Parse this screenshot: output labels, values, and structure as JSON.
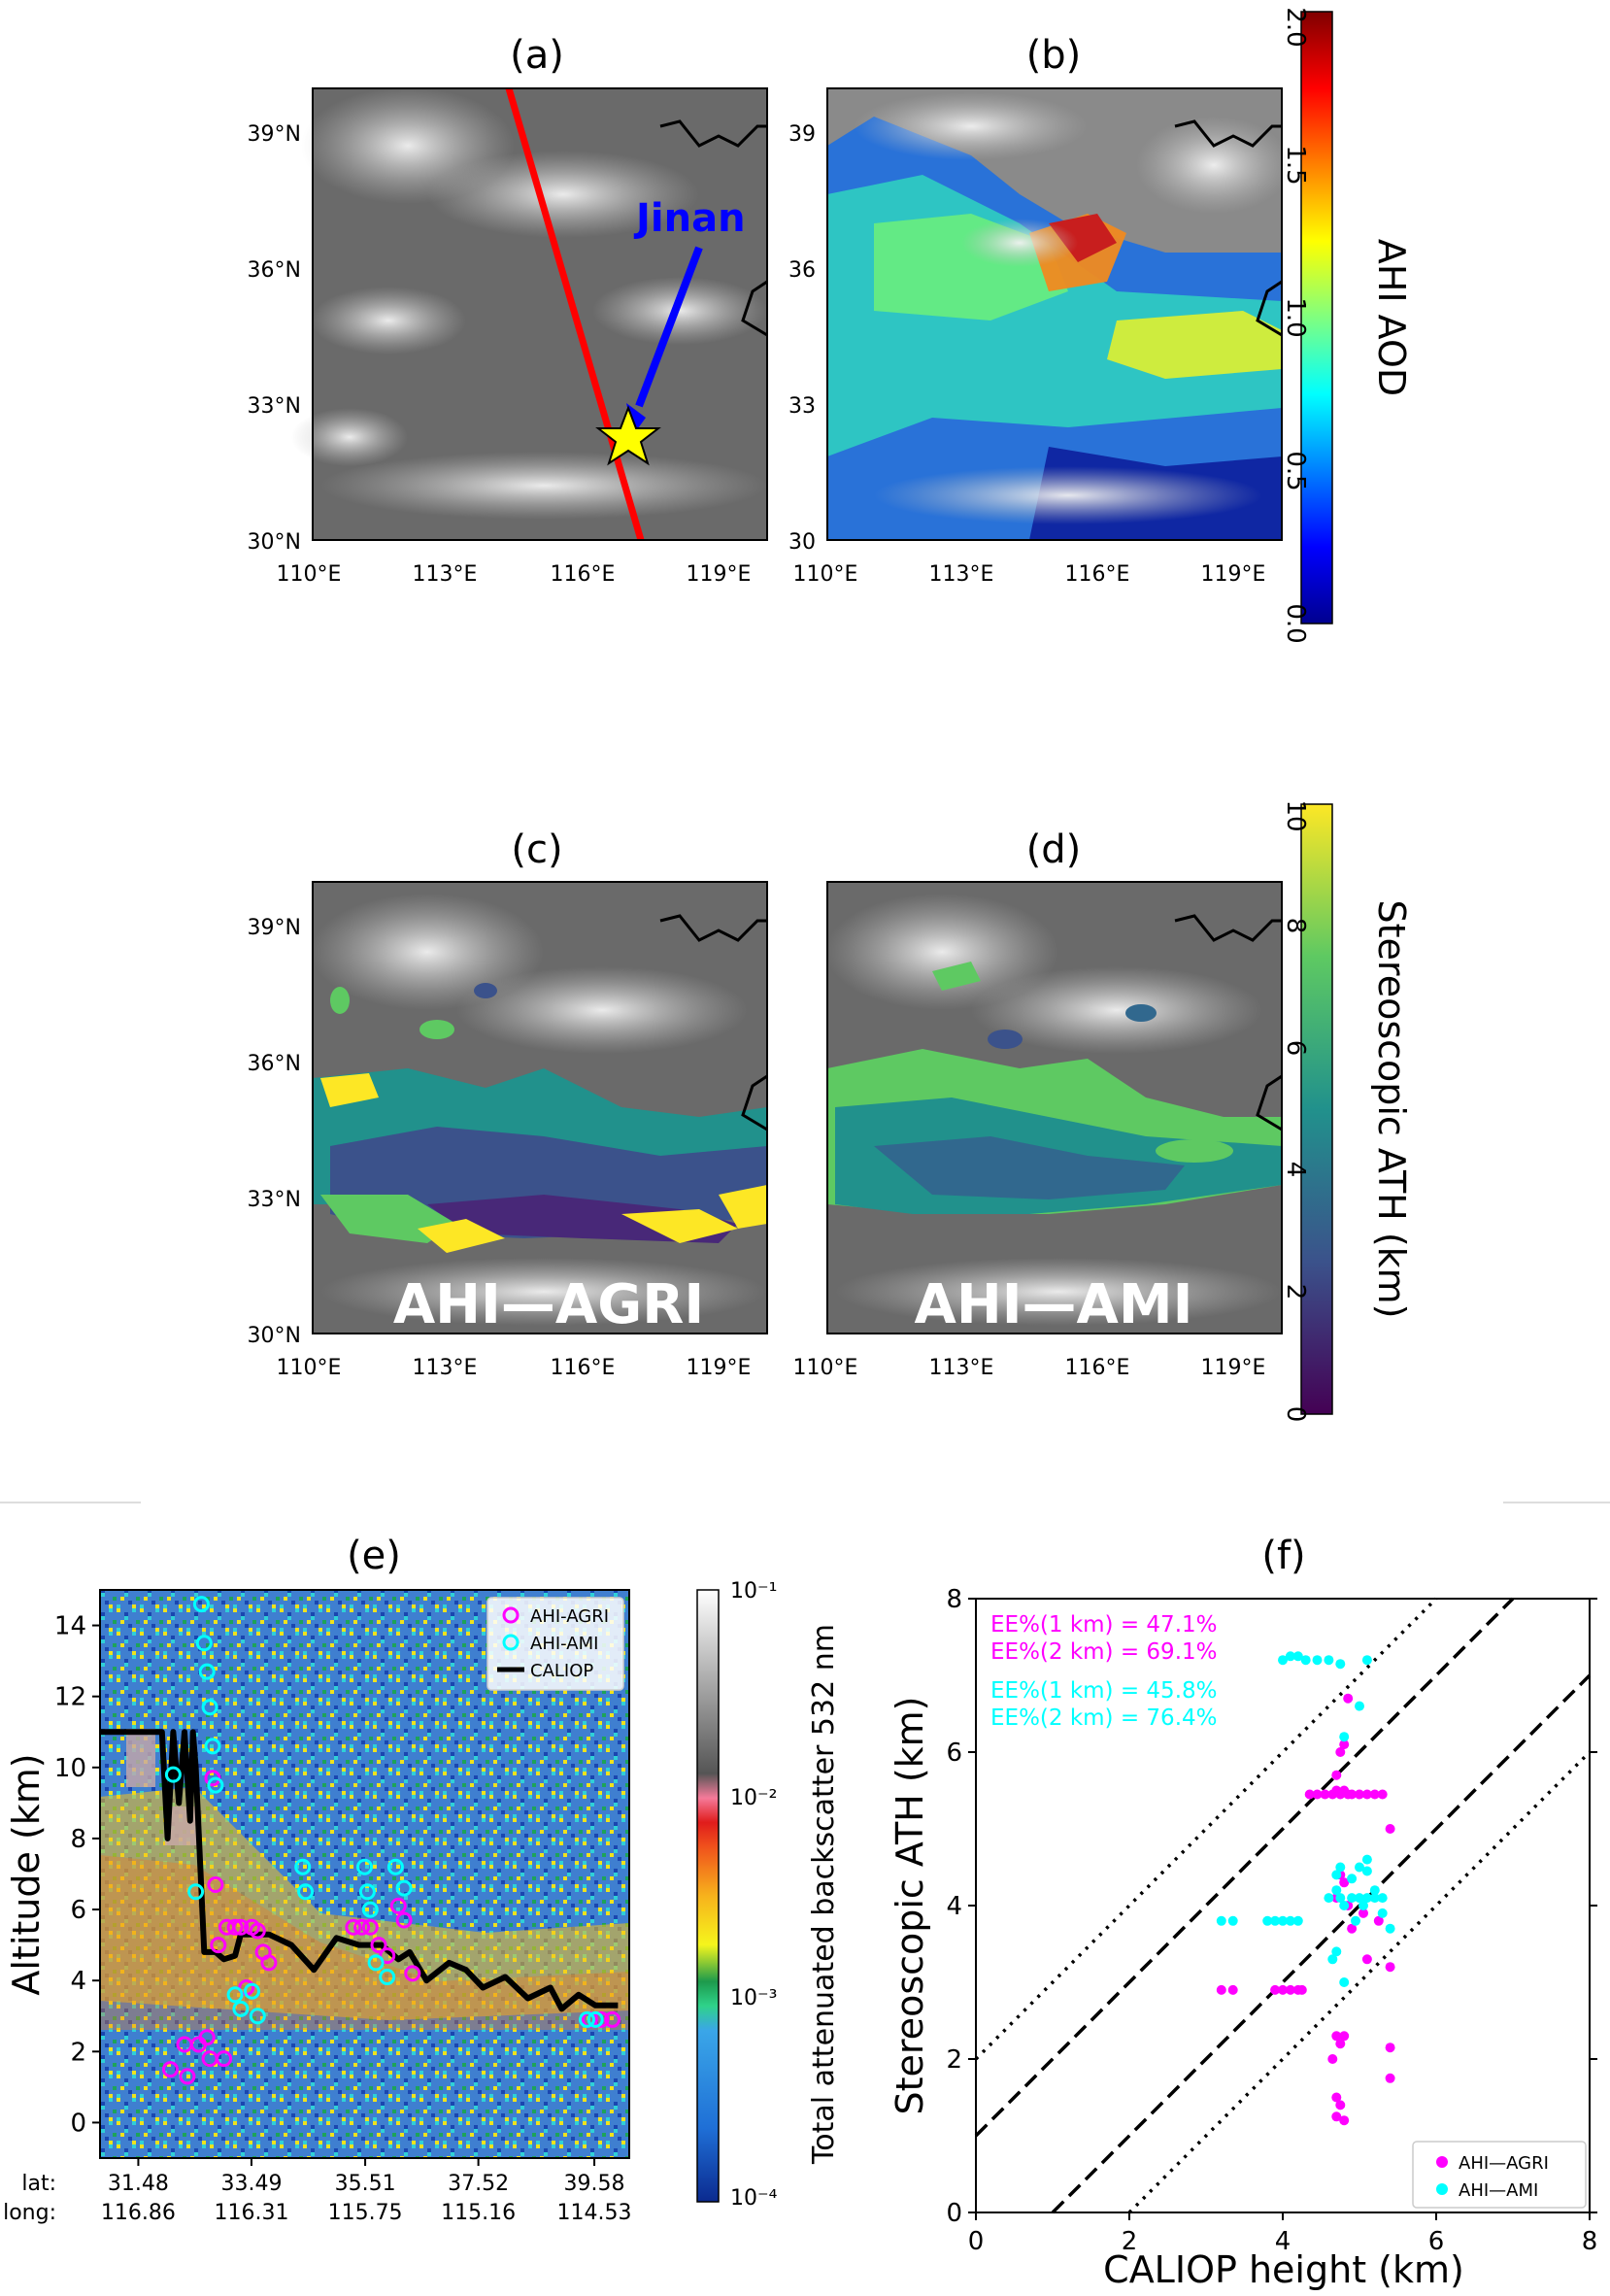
{
  "panels": {
    "a": {
      "title": "(a)",
      "annotation": "Jinan"
    },
    "b": {
      "title": "(b)"
    },
    "c": {
      "title": "(c)",
      "overlay_label": "AHI—AGRI"
    },
    "d": {
      "title": "(d)",
      "overlay_label": "AHI—AMI"
    },
    "e": {
      "title": "(e)"
    },
    "f": {
      "title": "(f)"
    }
  },
  "map_ticks": {
    "lat_labeled": [
      "39°N",
      "36°N",
      "33°N",
      "30°N"
    ],
    "lat_plain": [
      "39",
      "36",
      "33",
      "30"
    ],
    "lon": [
      "110°E",
      "113°E",
      "116°E",
      "119°E"
    ]
  },
  "colorbars": {
    "aod": {
      "label": "AHI AOD",
      "ticks": [
        "0.0",
        "0.5",
        "1.0",
        "1.5",
        "2.0"
      ],
      "range": [
        0,
        2
      ],
      "colormap": "jet"
    },
    "ath": {
      "label": "Stereoscopic ATH  (km)",
      "ticks": [
        "0",
        "2",
        "4",
        "6",
        "8",
        "10"
      ],
      "range": [
        0,
        10
      ],
      "colormap": "viridis"
    },
    "backscatter": {
      "label": "Total attenuated backscatter 532 nm",
      "ticks": [
        "10⁻⁴",
        "10⁻³",
        "10⁻²",
        "10⁻¹"
      ],
      "scale": "log"
    }
  },
  "colors": {
    "track": "#ff0000",
    "jinan_arrow": "#0000ff",
    "star": "#ffff00",
    "agri": "#ff00ff",
    "ami": "#00ffff",
    "caliop": "#000000"
  },
  "chart_data": [
    {
      "id": "e",
      "type": "line",
      "title": "(e)",
      "ylabel": "Altitude (km)",
      "ylim": [
        -1,
        15
      ],
      "yticks": [
        "0",
        "2",
        "4",
        "6",
        "8",
        "10",
        "12",
        "14"
      ],
      "x_row_labels": [
        "lat:",
        "long:"
      ],
      "xticks": [
        {
          "lat": "31.48",
          "long": "116.86"
        },
        {
          "lat": "33.49",
          "long": "116.31"
        },
        {
          "lat": "35.51",
          "long": "115.75"
        },
        {
          "lat": "37.52",
          "long": "115.16"
        },
        {
          "lat": "39.58",
          "long": "114.53"
        }
      ],
      "xlim_lat": [
        30.8,
        40.2
      ],
      "legend": [
        "AHI-AGRI",
        "AHI-AMI",
        "CALIOP"
      ],
      "legend_position": "top-right",
      "caliop_line": {
        "lat": [
          30.8,
          31.9,
          32.0,
          32.1,
          32.2,
          32.3,
          32.4,
          32.45,
          32.5,
          32.65,
          32.7,
          32.8,
          32.85,
          33.0,
          33.2,
          33.3,
          33.5,
          33.8,
          34.2,
          34.6,
          35.0,
          35.4,
          35.8,
          36.1,
          36.3,
          36.6,
          37.0,
          37.3,
          37.6,
          38.0,
          38.4,
          38.8,
          39.0,
          39.3,
          39.6,
          40.0
        ],
        "alt": [
          11.0,
          11.0,
          8.0,
          11.0,
          9.0,
          11.0,
          8.5,
          11.0,
          10.0,
          4.8,
          4.8,
          4.8,
          4.8,
          4.6,
          4.7,
          5.3,
          5.3,
          5.3,
          5.0,
          4.3,
          5.2,
          5.0,
          5.0,
          4.6,
          4.8,
          4.0,
          4.5,
          4.3,
          3.8,
          4.1,
          3.5,
          3.8,
          3.2,
          3.6,
          3.3,
          3.3
        ]
      },
      "series": [
        {
          "name": "AHI-AGRI",
          "lat": [
            32.05,
            32.3,
            32.35,
            32.55,
            32.7,
            32.75,
            32.8,
            32.85,
            32.9,
            33.0,
            33.05,
            33.2,
            33.3,
            33.4,
            33.5,
            33.6,
            33.7,
            33.8,
            35.3,
            35.45,
            35.6,
            35.75,
            35.9,
            36.1,
            36.2,
            36.35,
            39.5,
            39.7,
            39.9
          ],
          "alt": [
            1.5,
            2.2,
            1.3,
            2.2,
            2.4,
            1.8,
            9.7,
            6.7,
            5.0,
            1.8,
            5.5,
            5.5,
            5.5,
            3.8,
            5.5,
            5.4,
            4.8,
            4.5,
            5.5,
            5.5,
            5.5,
            5.0,
            4.7,
            6.1,
            5.7,
            4.2,
            2.9,
            2.9,
            2.9
          ]
        },
        {
          "name": "AHI-AMI",
          "lat": [
            32.6,
            32.65,
            32.7,
            32.75,
            32.8,
            32.85,
            32.1,
            32.5,
            33.2,
            33.3,
            33.5,
            33.6,
            34.4,
            34.45,
            35.5,
            35.55,
            35.6,
            35.7,
            35.9,
            36.05,
            36.2,
            39.45,
            39.6
          ],
          "alt": [
            14.6,
            13.5,
            12.7,
            11.7,
            10.6,
            9.5,
            9.8,
            6.5,
            3.6,
            3.2,
            3.7,
            3.0,
            7.2,
            6.5,
            7.2,
            6.5,
            6.0,
            4.5,
            4.1,
            7.2,
            6.6,
            2.9,
            2.9
          ]
        }
      ]
    },
    {
      "id": "f",
      "type": "scatter",
      "title": "(f)",
      "xlabel": "CALIOP height (km)",
      "ylabel": "Stereoscopic ATH (km)",
      "xlim": [
        0,
        8
      ],
      "ylim": [
        0,
        8
      ],
      "xticks": [
        "0",
        "2",
        "4",
        "6",
        "8"
      ],
      "yticks": [
        "0",
        "2",
        "4",
        "6",
        "8"
      ],
      "legend": [
        "AHI—AGRI",
        "AHI—AMI"
      ],
      "legend_position": "bottom-right",
      "annotations": [
        {
          "text": "EE%(1 km) = 47.1%",
          "color": "#ff00ff"
        },
        {
          "text": "EE%(2 km) = 69.1%",
          "color": "#ff00ff"
        },
        {
          "text": "EE%(1 km) = 45.8%",
          "color": "#00ffff"
        },
        {
          "text": "EE%(2 km) = 76.4%",
          "color": "#00ffff"
        }
      ],
      "reference_lines": [
        {
          "style": "dashed",
          "offset": 1
        },
        {
          "style": "dashed",
          "offset": -1
        },
        {
          "style": "dotted",
          "offset": 2
        },
        {
          "style": "dotted",
          "offset": -2
        }
      ],
      "series": [
        {
          "name": "AHI—AGRI",
          "x": [
            3.2,
            3.35,
            3.9,
            4.0,
            4.1,
            4.2,
            4.25,
            4.35,
            4.45,
            4.55,
            4.65,
            4.7,
            4.75,
            4.8,
            4.85,
            4.9,
            5.0,
            5.1,
            5.2,
            5.3,
            4.7,
            4.75,
            4.8,
            4.85,
            4.9,
            5.05,
            5.25,
            5.4,
            4.7,
            4.75,
            4.8,
            4.65,
            4.7,
            4.75,
            4.7,
            4.8,
            4.85,
            5.4,
            5.4,
            5.4,
            4.8,
            4.75,
            5.1,
            4.7
          ],
          "y": [
            2.9,
            2.9,
            2.9,
            2.9,
            2.9,
            2.9,
            2.9,
            5.45,
            5.45,
            5.45,
            5.45,
            5.5,
            5.45,
            5.5,
            5.45,
            5.45,
            5.45,
            5.45,
            5.45,
            5.45,
            4.1,
            4.4,
            4.3,
            4.0,
            3.7,
            3.9,
            3.8,
            3.2,
            2.3,
            2.2,
            2.3,
            2.0,
            1.5,
            1.4,
            1.25,
            1.2,
            6.7,
            5.0,
            2.15,
            1.75,
            6.1,
            6.0,
            3.3,
            5.7
          ]
        },
        {
          "name": "AHI—AMI",
          "x": [
            4.0,
            4.1,
            4.2,
            4.3,
            4.45,
            4.6,
            4.75,
            5.1,
            3.2,
            3.35,
            3.8,
            3.9,
            4.0,
            4.1,
            4.2,
            4.6,
            4.7,
            4.75,
            4.8,
            4.9,
            5.0,
            5.1,
            5.2,
            5.3,
            5.4,
            4.7,
            4.75,
            4.9,
            5.0,
            5.1,
            4.65,
            4.7,
            4.8,
            4.95,
            5.05,
            5.2,
            5.3,
            5.0,
            4.8,
            5.1
          ],
          "y": [
            7.2,
            7.25,
            7.25,
            7.2,
            7.2,
            7.2,
            7.15,
            7.2,
            3.8,
            3.8,
            3.8,
            3.8,
            3.8,
            3.8,
            3.8,
            4.1,
            4.2,
            4.1,
            4.0,
            4.1,
            4.1,
            4.1,
            4.1,
            4.1,
            3.7,
            4.4,
            4.5,
            4.35,
            4.5,
            4.45,
            3.3,
            3.4,
            3.0,
            3.8,
            4.0,
            4.2,
            3.9,
            6.6,
            6.2,
            4.6
          ]
        }
      ]
    }
  ]
}
